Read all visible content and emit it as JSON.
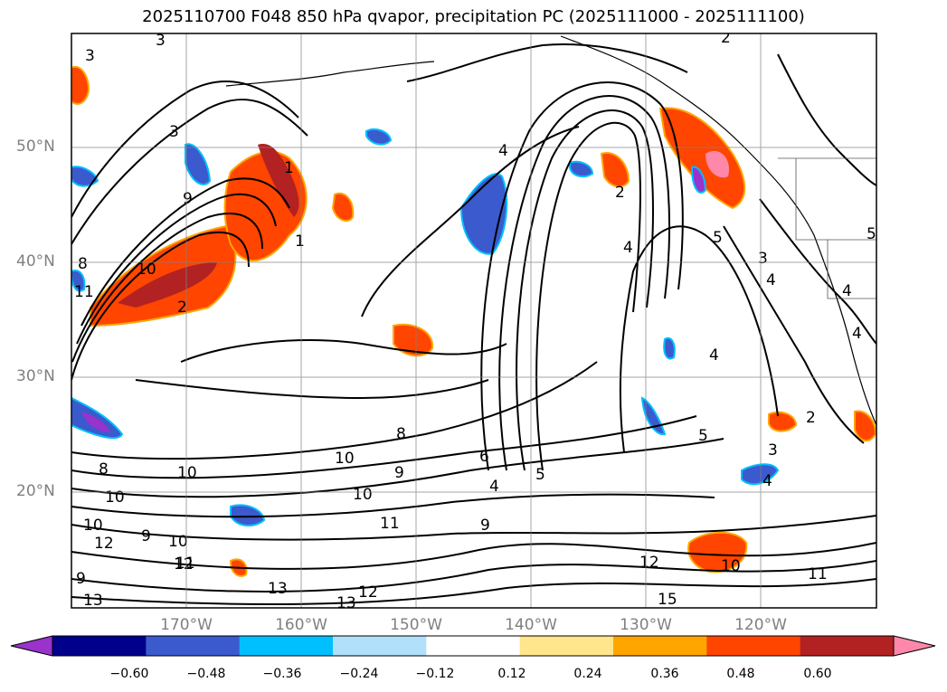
{
  "title": "2025110700 F048 850 hPa qvapor, precipitation PC (2025111000 - 2025111100)",
  "map": {
    "lat_labels": [
      "50°N",
      "40°N",
      "30°N",
      "20°N"
    ],
    "lon_labels": [
      "170°W",
      "160°W",
      "150°W",
      "140°W",
      "130°W",
      "120°W"
    ],
    "contour_labels": [
      "3",
      "2",
      "1",
      "3",
      "9",
      "8",
      "10",
      "11",
      "2",
      "1",
      "4",
      "2",
      "4",
      "5",
      "4",
      "3",
      "4",
      "4",
      "5",
      "2",
      "3",
      "4",
      "4",
      "5",
      "10",
      "8",
      "10",
      "10",
      "8",
      "9",
      "6",
      "4",
      "5",
      "11",
      "9",
      "10",
      "12",
      "12",
      "10",
      "11",
      "13",
      "13",
      "12",
      "13",
      "12",
      "10",
      "11",
      "15",
      "9",
      "9",
      "10",
      "3"
    ],
    "colors": {
      "land_outline": "#000000",
      "grid": "#808080"
    }
  },
  "colorbar": {
    "labels": [
      "−0.60",
      "−0.48",
      "−0.36",
      "−0.24",
      "−0.12",
      "0.12",
      "0.24",
      "0.36",
      "0.48",
      "0.60"
    ],
    "colors": [
      "#9933cc",
      "#00008b",
      "#3a5acd",
      "#00bfff",
      "#b0e0fa",
      "#ffffff",
      "#ffe68c",
      "#ffa500",
      "#ff4500",
      "#b22222",
      "#ff88aa"
    ]
  }
}
